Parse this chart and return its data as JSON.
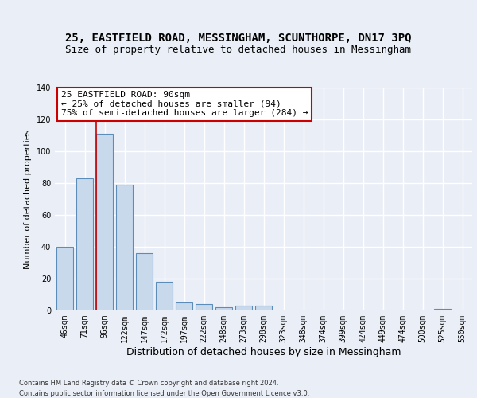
{
  "title1": "25, EASTFIELD ROAD, MESSINGHAM, SCUNTHORPE, DN17 3PQ",
  "title2": "Size of property relative to detached houses in Messingham",
  "xlabel": "Distribution of detached houses by size in Messingham",
  "ylabel": "Number of detached properties",
  "bar_labels": [
    "46sqm",
    "71sqm",
    "96sqm",
    "122sqm",
    "147sqm",
    "172sqm",
    "197sqm",
    "222sqm",
    "248sqm",
    "273sqm",
    "298sqm",
    "323sqm",
    "348sqm",
    "374sqm",
    "399sqm",
    "424sqm",
    "449sqm",
    "474sqm",
    "500sqm",
    "525sqm",
    "550sqm"
  ],
  "bar_values": [
    40,
    83,
    111,
    79,
    36,
    18,
    5,
    4,
    2,
    3,
    3,
    0,
    0,
    0,
    0,
    0,
    0,
    0,
    0,
    1,
    0
  ],
  "bar_color": "#c9d9ec",
  "bar_edge_color": "#5b8db8",
  "property_size_label": "25 EASTFIELD ROAD: 90sqm",
  "annotation_line1": "← 25% of detached houses are smaller (94)",
  "annotation_line2": "75% of semi-detached houses are larger (284) →",
  "vline_x_index": 2,
  "vline_color": "#cc0000",
  "ylim": [
    0,
    140
  ],
  "yticks": [
    0,
    20,
    40,
    60,
    80,
    100,
    120,
    140
  ],
  "footer1": "Contains HM Land Registry data © Crown copyright and database right 2024.",
  "footer2": "Contains public sector information licensed under the Open Government Licence v3.0.",
  "background_color": "#eaeff7",
  "plot_background": "#eaeff7",
  "grid_color": "#ffffff",
  "annotation_box_color": "#ffffff",
  "annotation_border_color": "#cc0000",
  "title_fontsize": 10,
  "subtitle_fontsize": 9,
  "tick_fontsize": 7,
  "ylabel_fontsize": 8,
  "xlabel_fontsize": 9,
  "annotation_fontsize": 8
}
